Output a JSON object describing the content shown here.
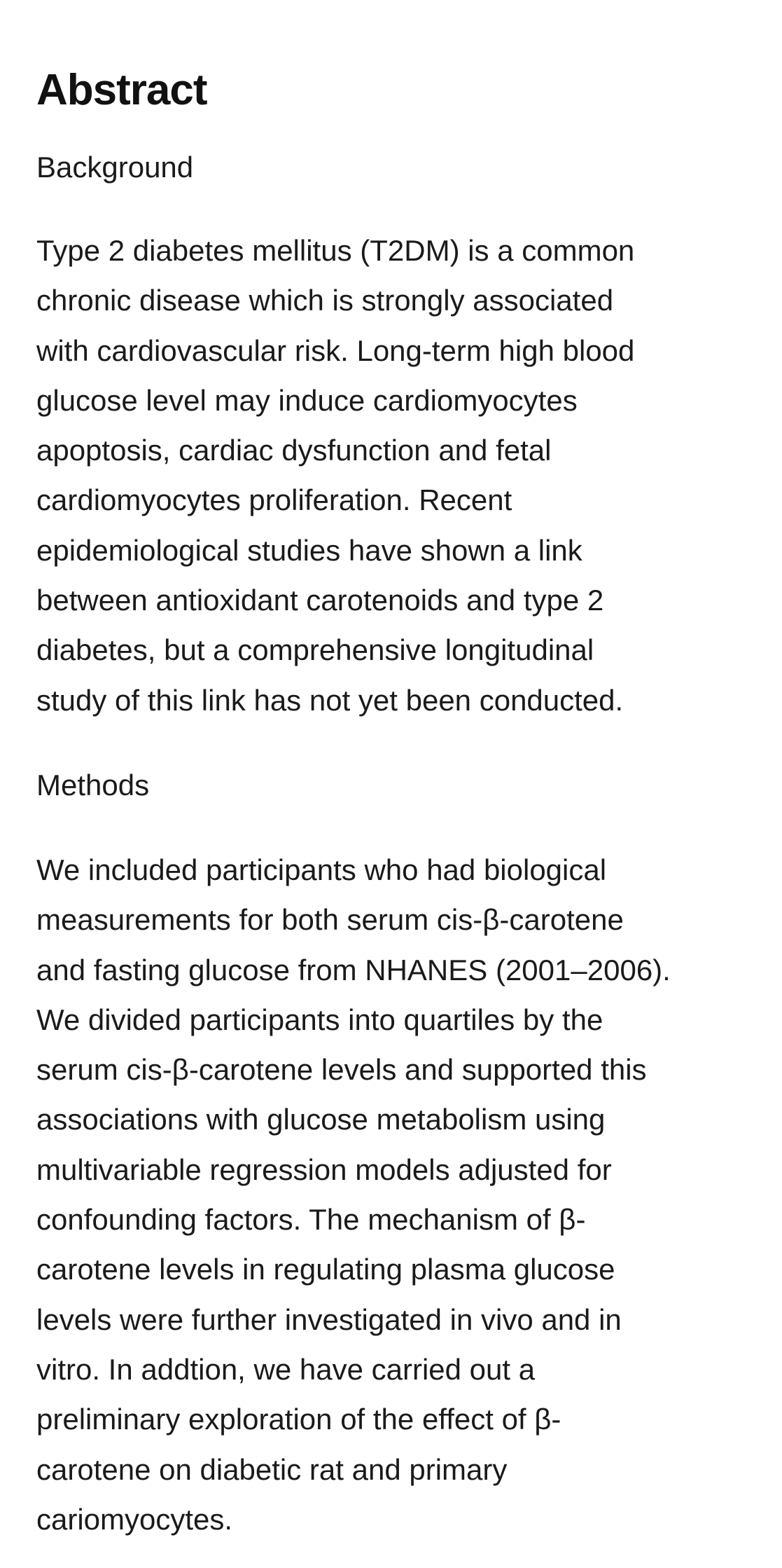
{
  "heading": "Abstract",
  "sections": [
    {
      "label": "Background",
      "lines": [
        "Type 2 diabetes mellitus (T2DM) is a common",
        "chronic disease which is strongly associated",
        "with cardiovascular risk. Long-term high blood",
        "glucose level may induce cardiomyocytes",
        "apoptosis, cardiac dysfunction and fetal",
        "cardiomyocytes proliferation. Recent",
        "epidemiological studies have shown a link",
        "between antioxidant carotenoids and type 2",
        "diabetes, but a comprehensive longitudinal",
        "study of this link has not yet been conducted."
      ]
    },
    {
      "label": "Methods",
      "lines": [
        "We included participants who had biological",
        "measurements for both serum cis-β-carotene",
        "and fasting glucose from NHANES (2001–2006).",
        "We divided participants into quartiles by the",
        "serum cis-β-carotene levels and supported this",
        "associations with glucose metabolism using",
        "multivariable regression models adjusted for",
        "confounding factors. The mechanism of β-",
        "carotene levels in regulating plasma glucose",
        "levels were further investigated in vivo and in",
        "vitro. In addtion, we have carried out a",
        "preliminary exploration of the effect of β-",
        "carotene on diabetic rat and primary",
        "cariomyocytes."
      ]
    }
  ]
}
